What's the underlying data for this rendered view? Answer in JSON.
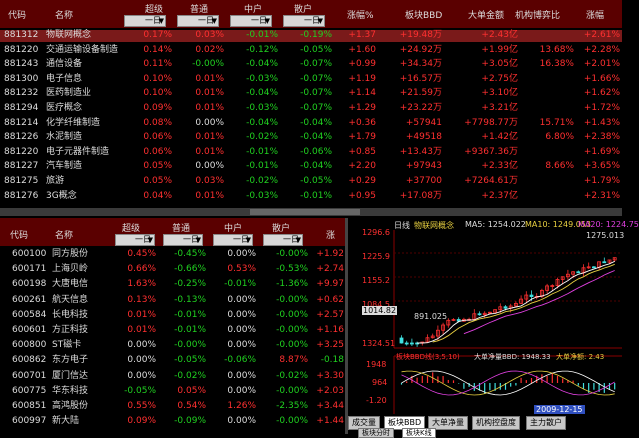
{
  "top": {
    "headers": [
      "代码",
      "名称",
      "超级",
      "普通",
      "中户",
      "散户",
      "涨幅%",
      "板块BBD",
      "大单金额",
      "机构博弈比",
      "涨幅"
    ],
    "dropdowns": [
      "一日",
      "一日",
      "一日",
      "一日"
    ],
    "rows": [
      {
        "code": "881312",
        "name": "物联网概念",
        "c1": "0.17%",
        "c2": "0.03%",
        "c3": "-0.01%",
        "c4": "-0.19%",
        "c5": "+1.37",
        "c6": "+19.48万",
        "c7": "+2.43亿",
        "c8": "",
        "c9": "+2.61%",
        "selected": true
      },
      {
        "code": "881220",
        "name": "交通运输设备制造",
        "c1": "0.14%",
        "c2": "0.02%",
        "c3": "-0.12%",
        "c4": "-0.05%",
        "c5": "+1.60",
        "c6": "+24.92万",
        "c7": "+1.99亿",
        "c8": "13.68%",
        "c9": "+2.28%"
      },
      {
        "code": "881243",
        "name": "通信设备",
        "c1": "0.11%",
        "c2": "-0.00%",
        "c3": "-0.04%",
        "c4": "-0.07%",
        "c5": "+0.99",
        "c6": "+34.34万",
        "c7": "+3.05亿",
        "c8": "16.38%",
        "c9": "+2.01%"
      },
      {
        "code": "881300",
        "name": "电子信息",
        "c1": "0.10%",
        "c2": "0.01%",
        "c3": "-0.03%",
        "c4": "-0.07%",
        "c5": "+1.19",
        "c6": "+16.57万",
        "c7": "+2.75亿",
        "c8": "",
        "c9": "+1.66%"
      },
      {
        "code": "881232",
        "name": "医药制造业",
        "c1": "0.10%",
        "c2": "0.01%",
        "c3": "-0.04%",
        "c4": "-0.07%",
        "c5": "+1.14",
        "c6": "+21.59万",
        "c7": "+3.10亿",
        "c8": "",
        "c9": "+1.62%"
      },
      {
        "code": "881294",
        "name": "医疗概念",
        "c1": "0.09%",
        "c2": "0.01%",
        "c3": "-0.03%",
        "c4": "-0.07%",
        "c5": "+1.29",
        "c6": "+23.22万",
        "c7": "+3.21亿",
        "c8": "",
        "c9": "+1.72%"
      },
      {
        "code": "881214",
        "name": "化学纤维制造",
        "c1": "0.08%",
        "c2": "0.00%",
        "c3": "-0.04%",
        "c4": "-0.04%",
        "c5": "+0.36",
        "c6": "+57941",
        "c7": "+7798.77万",
        "c8": "15.71%",
        "c9": "+1.43%"
      },
      {
        "code": "881226",
        "name": "水泥制造",
        "c1": "0.06%",
        "c2": "0.01%",
        "c3": "-0.02%",
        "c4": "-0.04%",
        "c5": "+1.79",
        "c6": "+49518",
        "c7": "+1.42亿",
        "c8": "6.80%",
        "c9": "+2.38%"
      },
      {
        "code": "881220",
        "name": "电子元器件制造",
        "c1": "0.06%",
        "c2": "0.01%",
        "c3": "-0.01%",
        "c4": "-0.06%",
        "c5": "+0.85",
        "c6": "+13.43万",
        "c7": "+9367.36万",
        "c8": "",
        "c9": "+1.69%"
      },
      {
        "code": "881227",
        "name": "汽车制造",
        "c1": "0.05%",
        "c2": "0.00%",
        "c3": "-0.01%",
        "c4": "-0.04%",
        "c5": "+2.20",
        "c6": "+97943",
        "c7": "+2.33亿",
        "c8": "8.66%",
        "c9": "+3.65%"
      },
      {
        "code": "881275",
        "name": "旅游",
        "c1": "0.05%",
        "c2": "0.03%",
        "c3": "-0.02%",
        "c4": "-0.05%",
        "c5": "+0.29",
        "c6": "+37700",
        "c7": "+7264.61万",
        "c8": "",
        "c9": "+1.79%"
      },
      {
        "code": "881276",
        "name": "3G概念",
        "c1": "0.04%",
        "c2": "0.01%",
        "c3": "-0.03%",
        "c4": "-0.01%",
        "c5": "+0.95",
        "c6": "+17.08万",
        "c7": "+2.37亿",
        "c8": "",
        "c9": "+2.31%"
      }
    ]
  },
  "bottom": {
    "headers": [
      "代码",
      "名称",
      "超级",
      "普通",
      "中户",
      "散户",
      "涨"
    ],
    "dropdowns": [
      "一日",
      "一日",
      "一日",
      "一日"
    ],
    "rows": [
      {
        "code": "600100",
        "name": "同方股份",
        "c1": "0.45%",
        "c2": "-0.45%",
        "c3": "0.00%",
        "c4": "-0.00%",
        "c5": "+1.92"
      },
      {
        "code": "600171",
        "name": "上海贝岭",
        "c1": "0.66%",
        "c2": "-0.66%",
        "c3": "0.53%",
        "c4": "-0.53%",
        "c5": "+2.74"
      },
      {
        "code": "600198",
        "name": "大唐电信",
        "c1": "1.63%",
        "c2": "-0.25%",
        "c3": "-0.01%",
        "c4": "-1.36%",
        "c5": "+9.97"
      },
      {
        "code": "600261",
        "name": "航天信息",
        "c1": "0.13%",
        "c2": "-0.13%",
        "c3": "0.00%",
        "c4": "-0.00%",
        "c5": "+0.62"
      },
      {
        "code": "600584",
        "name": "长电科技",
        "c1": "0.01%",
        "c2": "-0.01%",
        "c3": "0.00%",
        "c4": "-0.00%",
        "c5": "+2.57"
      },
      {
        "code": "600601",
        "name": "方正科技",
        "c1": "0.01%",
        "c2": "-0.01%",
        "c3": "0.00%",
        "c4": "-0.00%",
        "c5": "+1.16"
      },
      {
        "code": "600800",
        "name": "ST磁卡",
        "c1": "0.00%",
        "c2": "-0.00%",
        "c3": "0.00%",
        "c4": "-0.00%",
        "c5": "+3.25"
      },
      {
        "code": "600862",
        "name": "东方电子",
        "c1": "0.00%",
        "c2": "-0.05%",
        "c3": "-0.06%",
        "c4": "8.87%",
        "c5": "-0.18"
      },
      {
        "code": "600701",
        "name": "厦门信达",
        "c1": "0.00%",
        "c2": "-0.02%",
        "c3": "0.00%",
        "c4": "-0.02%",
        "c5": "+3.30"
      },
      {
        "code": "600775",
        "name": "华东科技",
        "c1": "-0.05%",
        "c2": "0.05%",
        "c3": "0.00%",
        "c4": "-0.00%",
        "c5": "+2.03"
      },
      {
        "code": "600851",
        "name": "高鸿股份",
        "c1": "0.55%",
        "c2": "0.54%",
        "c3": "1.26%",
        "c4": "-2.35%",
        "c5": "+3.44"
      },
      {
        "code": "600997",
        "name": "新大陆",
        "c1": "0.09%",
        "c2": "-0.09%",
        "c3": "0.00%",
        "c4": "-0.00%",
        "c5": "+1.44"
      }
    ]
  },
  "kline": {
    "title_left": "日线",
    "title_name": "物联网概念",
    "ma5": "MA5: 1254.022",
    "ma10": "MA10: 1249.053",
    "ma20": "MA20: 1224.75",
    "yticks": [
      "1296.6",
      "1225.9",
      "1155.2",
      "1084.5",
      "1014.8"
    ],
    "high_label": "1275.013",
    "low_label": "891.025",
    "left_value": "1014.82",
    "bottom_value": "1324.51",
    "ind_title": "板块BBD线(3,5,10)",
    "ind_sub": "大单净量BBD: 1948.33",
    "ind_net": "大单净额: 2.43",
    "ind_yticks": [
      "1948",
      "964",
      "-1.20"
    ],
    "date_label": "2009-12-15",
    "tabs": [
      "成交量",
      "板块BBD",
      "大单净量",
      "机构控盘度",
      "主力散户"
    ],
    "tabs2": [
      "板块分时",
      "板块K线"
    ]
  },
  "colors": {
    "header_bg": "#5a0000",
    "red": "#ff3030",
    "green": "#20d020",
    "yellow": "#e8d040"
  }
}
